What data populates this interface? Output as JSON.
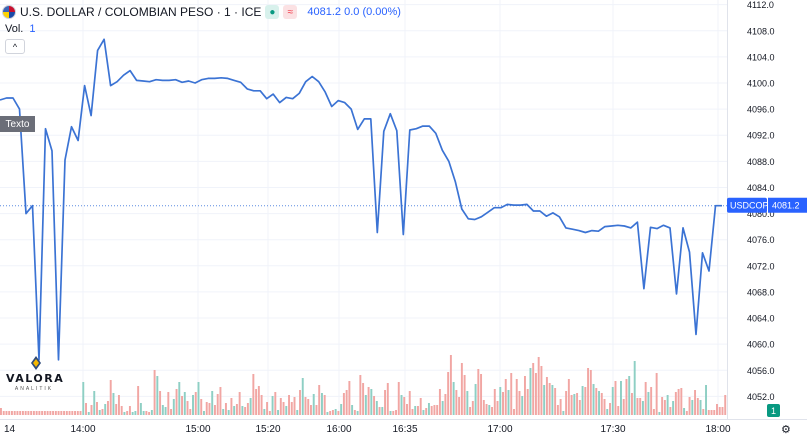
{
  "header": {
    "title": "U.S. DOLLAR / COLOMBIAN PESO · 1 · ICE",
    "status_icon": "●",
    "compare_icon": "≈",
    "quote": "4081.2  0.0 (0.00%)"
  },
  "volume_label": {
    "label": "Vol.",
    "value": "1"
  },
  "collapse_icon": "^",
  "texto_label": "Texto",
  "logo": {
    "name": "VALORA",
    "sub": "ANALITIK"
  },
  "price_tag": {
    "symbol": "USDCOP",
    "value": "4081.2"
  },
  "volume_tag": "1",
  "x_start_label": "14",
  "settings_icon": "⚙",
  "colors": {
    "line": "#3b73d4",
    "up_volume": "#8ecfc4",
    "down_volume": "#f1a6a3",
    "current_price_line": "#5b8ce0",
    "tag_bg": "#2962ff",
    "volume_tag_bg": "#089981"
  },
  "chart_data": {
    "type": "line",
    "title": "U.S. DOLLAR / COLOMBIAN PESO · 1 · ICE",
    "xlabel": "",
    "ylabel": "",
    "x_ticks": [
      "14:00",
      "15:00",
      "15:20",
      "16:00",
      "16:35",
      "17:00",
      "17:30",
      "18:00"
    ],
    "y_ticks": [
      "4112.0",
      "4108.0",
      "4104.0",
      "4100.0",
      "4096.0",
      "4092.0",
      "4088.0",
      "4084.0",
      "4080.0",
      "4076.0",
      "4072.0",
      "4068.0",
      "4064.0",
      "4060.0",
      "4056.0",
      "4052.0"
    ],
    "ylim": [
      4051.6,
      4112.1
    ],
    "current_price": 4081.2,
    "grid": true,
    "series": [
      {
        "name": "USDCOP",
        "values": [
          4097.4,
          4097.7,
          4097.7,
          4096.0,
          4080.0,
          4081.2,
          4057.6,
          4093.0,
          4089.6,
          4057.6,
          4088.2,
          4093.3,
          4091.2,
          4099.6,
          4095.0,
          4105.0,
          4106.7,
          4099.6,
          4100.2,
          4101.2,
          4101.9,
          4100.4,
          4100.3,
          4100.2,
          4100.5,
          4100.4,
          4100.4,
          4100.5,
          4100.1,
          4100.3,
          4100.0,
          4100.5,
          4100.7,
          4100.7,
          4100.8,
          4100.7,
          4100.4,
          4100.1,
          4099.1,
          4098.8,
          4098.8,
          4097.6,
          4098.3,
          4097.0,
          4097.8,
          4097.6,
          4098.4,
          4100.2,
          4101.0,
          4100.2,
          4098.6,
          4096.4,
          4097.3,
          4097.0,
          4096.0,
          4092.9,
          4094.5,
          4094.5,
          4077.1,
          4092.6,
          4095.3,
          4092.7,
          4076.8,
          4092.8,
          4093.0,
          4093.4,
          4093.4,
          4092.3,
          4089.7,
          4088.0,
          4084.9,
          4080.7,
          4079.2,
          4079.1,
          4079.5,
          4080.2,
          4080.9,
          4080.9,
          4081.4,
          4081.3,
          4081.3,
          4081.4,
          4080.4,
          4080.4,
          4079.6,
          4080.1,
          4079.5,
          4077.8,
          4077.6,
          4077.4,
          4077.1,
          4077.4,
          4077.3,
          4078.0,
          4078.1,
          4078.2,
          4078.1,
          4077.8,
          4078.7,
          4068.5,
          4077.9,
          4077.7,
          4078.2,
          4077.8,
          4067.7,
          4077.8,
          4074.1,
          4061.5,
          4074.0,
          4071.2,
          4081.2,
          4081.2
        ]
      }
    ],
    "volume": {
      "values": [
        1,
        1,
        1,
        1,
        1,
        1,
        1,
        1,
        1,
        1,
        1,
        1,
        1,
        1,
        1,
        1,
        1,
        1,
        1,
        1,
        1,
        1,
        1,
        1,
        1,
        1,
        1,
        1,
        1,
        1,
        1,
        1,
        1,
        1,
        1,
        1,
        1,
        1,
        1,
        1,
        1,
        1,
        1,
        1,
        1,
        1,
        1,
        1,
        1,
        1,
        1,
        1,
        1,
        1,
        1,
        1,
        1,
        1,
        1,
        1,
        1,
        1,
        1,
        1,
        1,
        1,
        1,
        1,
        1,
        1,
        1,
        1,
        1,
        1,
        1,
        1,
        1,
        1,
        1,
        1,
        1,
        1,
        1,
        1,
        1,
        1,
        1,
        1,
        1,
        1,
        1,
        1,
        1,
        1,
        1,
        1,
        1,
        1,
        1,
        1,
        1,
        1,
        1,
        1,
        1,
        1,
        1,
        1,
        1,
        1,
        1,
        1,
        1,
        1,
        1,
        1,
        1,
        1,
        1,
        1,
        1,
        1,
        1,
        1,
        1,
        1,
        1,
        1,
        1,
        1,
        1,
        1,
        1,
        1,
        1,
        1,
        1,
        1,
        1,
        1,
        1,
        1,
        1,
        1,
        1,
        1,
        1,
        1,
        1,
        1,
        1,
        1,
        1,
        1,
        1,
        1,
        1,
        1,
        1,
        1,
        1,
        1,
        1,
        1,
        1,
        1,
        1,
        1,
        1,
        1,
        1,
        1,
        1,
        1,
        1,
        1,
        1,
        1,
        1,
        1,
        1,
        1,
        1,
        1,
        1,
        1,
        1,
        1,
        1,
        1,
        1,
        1,
        1,
        1,
        1,
        1,
        1,
        1,
        1,
        1,
        1,
        1,
        1,
        1,
        1,
        1,
        1,
        1,
        1,
        1,
        1,
        1,
        1,
        1,
        1,
        1,
        1,
        1,
        1,
        1,
        1,
        1,
        1,
        1,
        1,
        1,
        1,
        1,
        1,
        1,
        1,
        1,
        1,
        1,
        1,
        1,
        1,
        1,
        1,
        1,
        1,
        1,
        1,
        1,
        1,
        1
      ],
      "heights_rel": [
        1,
        1,
        1,
        1,
        1,
        1,
        1,
        1,
        1,
        1,
        1,
        1,
        1,
        1,
        1,
        1,
        1,
        1,
        1,
        1,
        1,
        1,
        1,
        1,
        1,
        1,
        1,
        1,
        1,
        1,
        1,
        1,
        1,
        1,
        1,
        1,
        1,
        1,
        1,
        1,
        1,
        1,
        1,
        1,
        1,
        1,
        1,
        1,
        1,
        1,
        1,
        1,
        1,
        1,
        1,
        1,
        1,
        1,
        1,
        1,
        1,
        1,
        1,
        1,
        1,
        1,
        1,
        1,
        1,
        1,
        1,
        1,
        1,
        1,
        1,
        1,
        1,
        1,
        1,
        1,
        1,
        1,
        1,
        1,
        1,
        1,
        1,
        1,
        1,
        1,
        1,
        1,
        1,
        1,
        1,
        1,
        1,
        1,
        1,
        1,
        1,
        1,
        1,
        1,
        1,
        1,
        1,
        1,
        1,
        1,
        1,
        1,
        1,
        1,
        1,
        1,
        1,
        1,
        1,
        1,
        1,
        1,
        1,
        1,
        1,
        1,
        1,
        1,
        1,
        1,
        1,
        1,
        1,
        1,
        1,
        1,
        1,
        1,
        1,
        1,
        1,
        1,
        1,
        1,
        1,
        1,
        1,
        1,
        1,
        1,
        1,
        1,
        1,
        1,
        1,
        1,
        1,
        1,
        1,
        1,
        1,
        1,
        1,
        1,
        1,
        1,
        1,
        1,
        1,
        1,
        1,
        1,
        1,
        1,
        1,
        1,
        1,
        1,
        1,
        1,
        1,
        1,
        1,
        1,
        1,
        1,
        1,
        1,
        1,
        1,
        1,
        1,
        1,
        1,
        1,
        1,
        1,
        1,
        1,
        1,
        1,
        1,
        1,
        1,
        1,
        1,
        1,
        1,
        1,
        1,
        1,
        1,
        1,
        1,
        1,
        1,
        1,
        1,
        1,
        1,
        1,
        1,
        1,
        1,
        1,
        1,
        1,
        1,
        1,
        1,
        1,
        1,
        1,
        1,
        1,
        1,
        1,
        1,
        1,
        1,
        1,
        1,
        1,
        1,
        1,
        1
      ]
    }
  }
}
